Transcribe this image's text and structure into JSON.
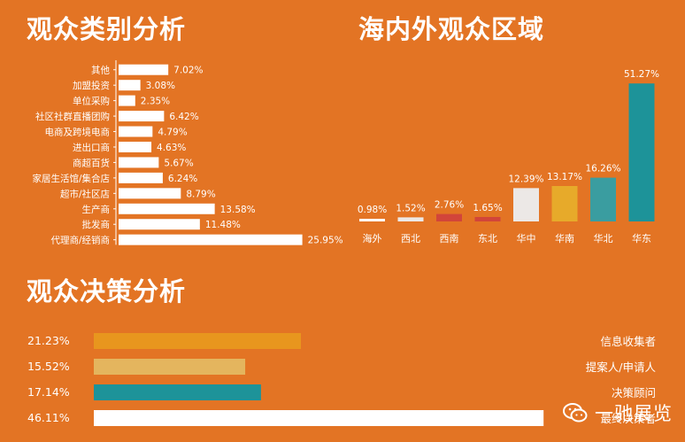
{
  "titles": {
    "category": "观众类别分析",
    "region": "海内外观众区域",
    "decision": "观众决策分析"
  },
  "watermark": "一驰展览",
  "colors": {
    "background": "#e37424",
    "white": "#ffffff",
    "light_gray": "#ece8e6",
    "red": "#d2453a",
    "yellow": "#e7aa2a",
    "teal": "#1d9399",
    "light_teal": "#3a9da0",
    "orange_bar": "#e8961e",
    "tan_bar": "#e4b55e"
  },
  "chart_data": [
    {
      "type": "bar",
      "orientation": "horizontal",
      "title": "观众类别分析",
      "categories": [
        "其他",
        "加盟投资",
        "单位采购",
        "社区社群直播团购",
        "电商及跨境电商",
        "进出口商",
        "商超百货",
        "家居生活馆/集合店",
        "超市/社区店",
        "生产商",
        "批发商",
        "代理商/经销商"
      ],
      "values": [
        7.02,
        3.08,
        2.35,
        6.42,
        4.79,
        4.63,
        5.67,
        6.24,
        8.79,
        13.58,
        11.48,
        25.95
      ],
      "value_labels": [
        "7.02%",
        "3.08%",
        "2.35%",
        "6.42%",
        "4.79%",
        "4.63%",
        "5.67%",
        "6.24%",
        "8.79%",
        "13.58%",
        "11.48%",
        "25.95%"
      ],
      "xlim": [
        0,
        26
      ]
    },
    {
      "type": "bar",
      "orientation": "vertical",
      "title": "海内外观众区域",
      "categories": [
        "海外",
        "西北",
        "西南",
        "东北",
        "华中",
        "华南",
        "华北",
        "华东"
      ],
      "values": [
        0.98,
        1.52,
        2.76,
        1.65,
        12.39,
        13.17,
        16.26,
        51.27
      ],
      "value_labels": [
        "0.98%",
        "1.52%",
        "2.76%",
        "1.65%",
        "12.39%",
        "13.17%",
        "16.26%",
        "51.27%"
      ],
      "bar_colors": [
        "#ffffff",
        "#ece8e6",
        "#d2453a",
        "#d2453a",
        "#ece8e6",
        "#e7aa2a",
        "#3a9da0",
        "#1d9399"
      ],
      "ylim": [
        0,
        52
      ]
    },
    {
      "type": "bar",
      "orientation": "horizontal",
      "title": "观众决策分析",
      "categories": [
        "信息收集者",
        "提案人/申请人",
        "决策顾问",
        "最终决策者"
      ],
      "values": [
        21.23,
        15.52,
        17.14,
        46.11
      ],
      "value_labels": [
        "21.23%",
        "15.52%",
        "17.14%",
        "46.11%"
      ],
      "bar_colors": [
        "#e8961e",
        "#e4b55e",
        "#1d9399",
        "#ffffff"
      ],
      "xlim": [
        0,
        47
      ]
    }
  ]
}
